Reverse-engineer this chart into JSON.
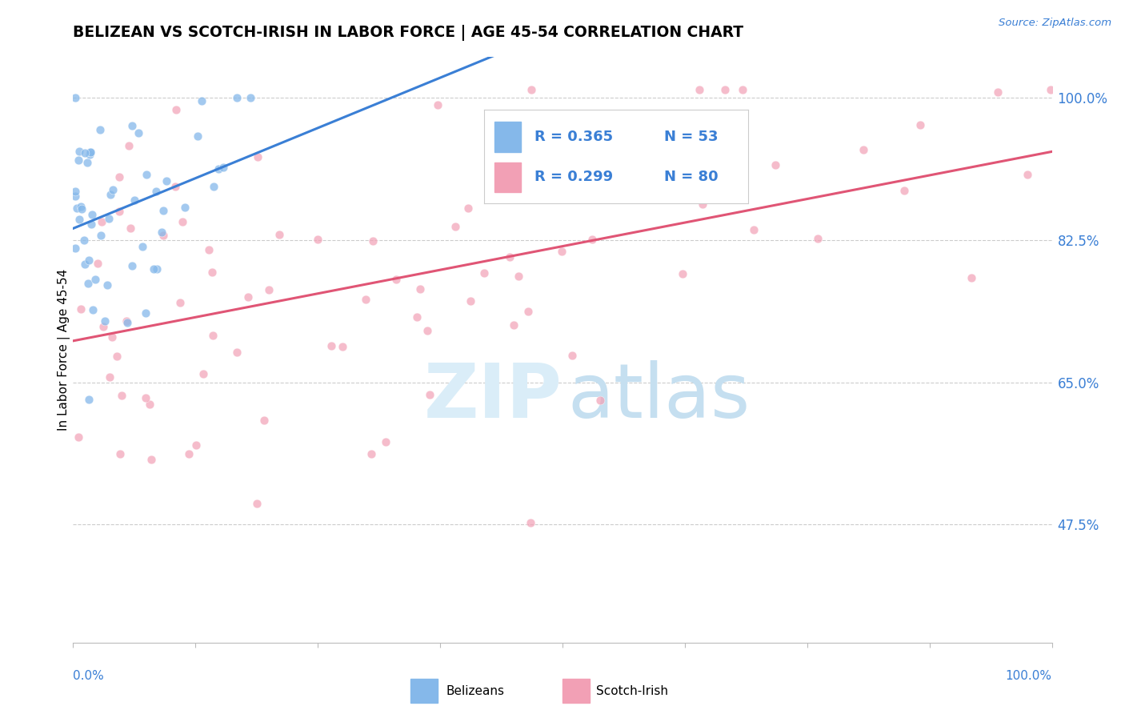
{
  "title": "BELIZEAN VS SCOTCH-IRISH IN LABOR FORCE | AGE 45-54 CORRELATION CHART",
  "source_text": "Source: ZipAtlas.com",
  "ylabel": "In Labor Force | Age 45-54",
  "ylabel_ticks": [
    100.0,
    82.5,
    65.0,
    47.5
  ],
  "ylabel_tick_labels": [
    "100.0%",
    "82.5%",
    "65.0%",
    "47.5%"
  ],
  "x_min": 0.0,
  "x_max": 100.0,
  "y_min": 33.0,
  "y_max": 105.0,
  "legend_r1": "R = 0.365",
  "legend_n1": "N = 53",
  "legend_r2": "R = 0.299",
  "legend_n2": "N = 80",
  "blue_color": "#85b8ea",
  "pink_color": "#f2a0b5",
  "trend_blue": "#3a7fd5",
  "trend_pink": "#e05575",
  "dot_size": 60,
  "blue_alpha": 0.75,
  "pink_alpha": 0.7
}
